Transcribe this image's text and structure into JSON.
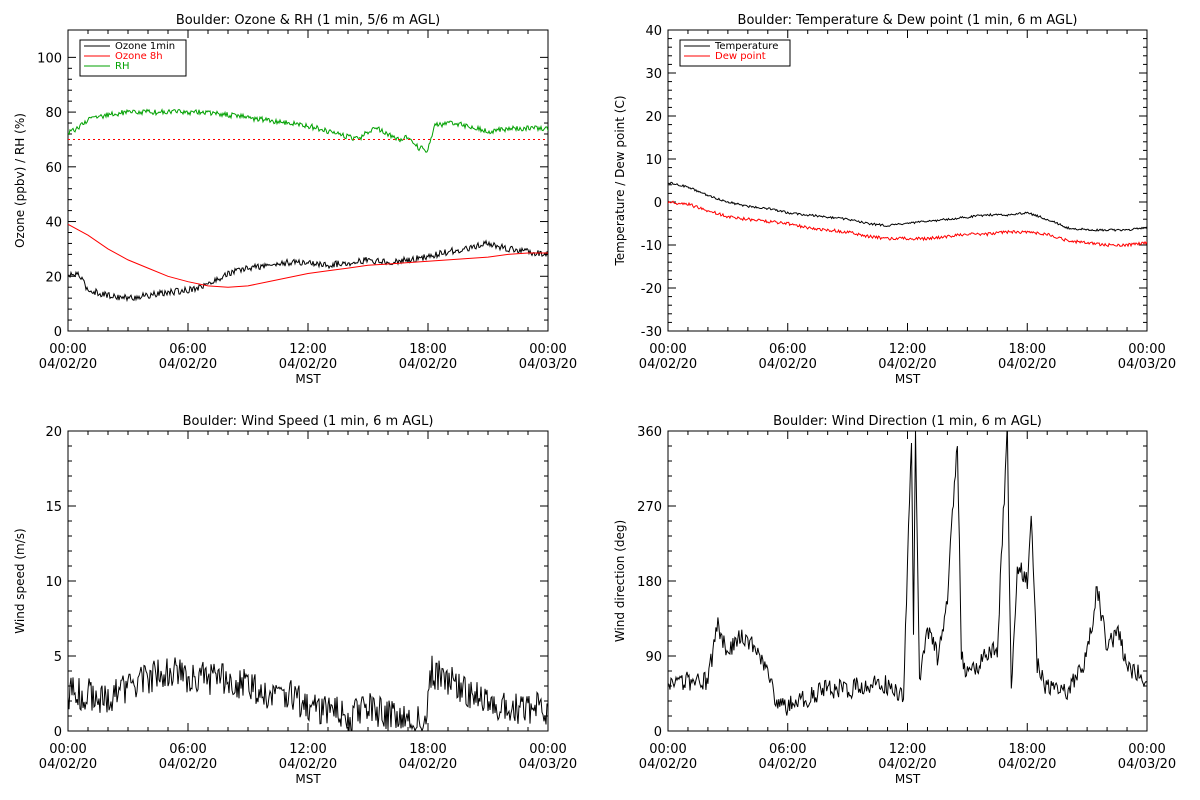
{
  "chart_data": [
    {
      "type": "line",
      "title": "Boulder: Ozone & RH (1 min, 5/6 m AGL)",
      "xlabel": "MST",
      "ylabel": "Ozone (ppbv) / RH (%)",
      "xlim": [
        0,
        24
      ],
      "ylim": [
        0,
        110
      ],
      "yticks": [
        0,
        20,
        40,
        60,
        80,
        100
      ],
      "xticks": [
        {
          "t": "00:00",
          "d": "04/02/20"
        },
        {
          "t": "06:00",
          "d": "04/02/20"
        },
        {
          "t": "12:00",
          "d": "04/02/20"
        },
        {
          "t": "18:00",
          "d": "04/02/20"
        },
        {
          "t": "00:00",
          "d": "04/03/20"
        }
      ],
      "legend": "top-left",
      "series": [
        {
          "name": "Ozone 1min",
          "color": "#000000",
          "style": "solid",
          "noise": 1.2,
          "x": [
            0,
            0.5,
            1,
            2,
            3,
            4,
            5,
            6,
            7,
            8,
            9,
            10,
            11,
            12,
            13,
            14,
            15,
            16,
            17,
            18,
            19,
            20,
            21,
            22,
            23,
            24
          ],
          "y": [
            20,
            21,
            15,
            13,
            12,
            13,
            14,
            15,
            17,
            21,
            23,
            24,
            25,
            25,
            24,
            25,
            26,
            25,
            26,
            27,
            29,
            30,
            32,
            30,
            29,
            28
          ]
        },
        {
          "name": "Ozone 8h",
          "color": "#ff0000",
          "style": "solid",
          "noise": 0,
          "x": [
            0,
            1,
            2,
            3,
            4,
            5,
            6,
            7,
            8,
            9,
            10,
            11,
            12,
            13,
            14,
            15,
            16,
            17,
            18,
            19,
            20,
            21,
            22,
            23,
            24
          ],
          "y": [
            39,
            35,
            30,
            26,
            23,
            20,
            18,
            16.5,
            16,
            16.5,
            18,
            19.5,
            21,
            22,
            23,
            24,
            24.5,
            25,
            25.5,
            26,
            26.5,
            27,
            28,
            28.5,
            28.5
          ]
        },
        {
          "name": "RH",
          "color": "#00a000",
          "style": "solid",
          "noise": 1.0,
          "x": [
            0,
            1,
            2,
            3,
            4,
            5,
            6,
            7,
            8,
            9,
            10,
            11,
            12,
            13,
            14,
            14.5,
            15,
            15.5,
            16,
            16.5,
            17,
            17.5,
            18,
            18.3,
            19,
            20,
            21,
            22,
            23,
            24
          ],
          "y": [
            72,
            77,
            79,
            80,
            80,
            80,
            80,
            80,
            79,
            78,
            77,
            76,
            75,
            73,
            71,
            70,
            73,
            74,
            72,
            70,
            71,
            67,
            66,
            75,
            76,
            75,
            73,
            74,
            74,
            74
          ]
        },
        {
          "name": "",
          "color": "#ff0000",
          "style": "dotted",
          "noise": 0,
          "x": [
            0,
            24
          ],
          "y": [
            70,
            70
          ]
        }
      ]
    },
    {
      "type": "line",
      "title": "Boulder: Temperature & Dew point (1 min, 6 m AGL)",
      "xlabel": "MST",
      "ylabel": "Temperature / Dew point (C)",
      "xlim": [
        0,
        24
      ],
      "ylim": [
        -30,
        40
      ],
      "yticks": [
        -30,
        -20,
        -10,
        0,
        10,
        20,
        30,
        40
      ],
      "xticks": [
        {
          "t": "00:00",
          "d": "04/02/20"
        },
        {
          "t": "06:00",
          "d": "04/02/20"
        },
        {
          "t": "12:00",
          "d": "04/02/20"
        },
        {
          "t": "18:00",
          "d": "04/02/20"
        },
        {
          "t": "00:00",
          "d": "04/03/20"
        }
      ],
      "legend": "top-left",
      "series": [
        {
          "name": "Temperature",
          "color": "#000000",
          "style": "solid",
          "noise": 0.25,
          "x": [
            0,
            1,
            2,
            3,
            4,
            5,
            6,
            7,
            8,
            9,
            10,
            11,
            12,
            13,
            14,
            15,
            16,
            17,
            18,
            19,
            20,
            21,
            22,
            23,
            24
          ],
          "y": [
            4.5,
            3.5,
            1.5,
            0,
            -1,
            -1.5,
            -2.5,
            -3,
            -3.5,
            -4,
            -5,
            -5.5,
            -5,
            -4.5,
            -4,
            -3.5,
            -3,
            -3,
            -2.5,
            -4,
            -6,
            -6.5,
            -6.5,
            -6.5,
            -6
          ]
        },
        {
          "name": "Dew point",
          "color": "#ff0000",
          "style": "solid",
          "noise": 0.35,
          "x": [
            0,
            1,
            2,
            3,
            4,
            5,
            6,
            7,
            8,
            9,
            10,
            11,
            12,
            13,
            14,
            15,
            16,
            17,
            18,
            19,
            20,
            21,
            22,
            23,
            24
          ],
          "y": [
            0,
            -0.5,
            -2,
            -3.5,
            -4,
            -4.5,
            -5,
            -6,
            -6.5,
            -7,
            -8,
            -8.5,
            -8.5,
            -8.5,
            -8,
            -7.5,
            -7.5,
            -7,
            -7,
            -7.5,
            -9,
            -9.5,
            -10,
            -10,
            -9.5
          ]
        }
      ]
    },
    {
      "type": "line",
      "title": "Boulder: Wind Speed (1 min, 6 m AGL)",
      "xlabel": "MST",
      "ylabel": "Wind speed (m/s)",
      "xlim": [
        0,
        24
      ],
      "ylim": [
        0,
        20
      ],
      "yticks": [
        0,
        5,
        10,
        15,
        20
      ],
      "xticks": [
        {
          "t": "00:00",
          "d": "04/02/20"
        },
        {
          "t": "06:00",
          "d": "04/02/20"
        },
        {
          "t": "12:00",
          "d": "04/02/20"
        },
        {
          "t": "18:00",
          "d": "04/02/20"
        },
        {
          "t": "00:00",
          "d": "04/03/20"
        }
      ],
      "series": [
        {
          "name": "",
          "color": "#000000",
          "style": "solid",
          "noise": 1.1,
          "x": [
            0,
            1,
            2,
            3,
            4,
            5,
            6,
            7,
            8,
            9,
            10,
            11,
            12,
            13,
            14,
            15,
            16,
            17,
            17.9,
            18.1,
            19,
            20,
            21,
            22,
            23,
            24
          ],
          "y": [
            2.5,
            2.5,
            2,
            3,
            3.5,
            4,
            3.5,
            3.5,
            3.5,
            3,
            2.5,
            2.5,
            1.5,
            1.5,
            1,
            1.5,
            1,
            0.7,
            0.6,
            4,
            3.5,
            2.5,
            2,
            1.5,
            1.5,
            1.5
          ]
        }
      ]
    },
    {
      "type": "line",
      "title": "Boulder: Wind Direction (1 min, 6 m AGL)",
      "xlabel": "MST",
      "ylabel": "Wind direction (deg)",
      "xlim": [
        0,
        24
      ],
      "ylim": [
        0,
        360
      ],
      "yticks": [
        0,
        90,
        180,
        270,
        360
      ],
      "xticks": [
        {
          "t": "00:00",
          "d": "04/02/20"
        },
        {
          "t": "06:00",
          "d": "04/02/20"
        },
        {
          "t": "12:00",
          "d": "04/02/20"
        },
        {
          "t": "18:00",
          "d": "04/02/20"
        },
        {
          "t": "00:00",
          "d": "04/03/20"
        }
      ],
      "series": [
        {
          "name": "",
          "color": "#000000",
          "style": "solid",
          "noise": 12,
          "x": [
            0,
            1,
            2,
            2.5,
            3,
            3.5,
            4,
            4.5,
            5,
            5.5,
            6,
            7,
            8,
            9,
            10,
            11,
            11.8,
            12,
            12.2,
            12.3,
            12.4,
            12.6,
            13,
            13.5,
            14,
            14.5,
            14.7,
            15,
            16,
            16.5,
            17,
            17.2,
            17.5,
            18,
            18.2,
            18.5,
            19,
            20,
            21,
            21.5,
            22,
            22.5,
            23,
            24
          ],
          "y": [
            50,
            60,
            60,
            130,
            90,
            115,
            110,
            100,
            70,
            30,
            30,
            40,
            50,
            50,
            55,
            55,
            45,
            200,
            350,
            120,
            350,
            60,
            120,
            90,
            160,
            350,
            90,
            70,
            90,
            100,
            360,
            40,
            200,
            180,
            270,
            80,
            50,
            50,
            90,
            170,
            100,
            120,
            80,
            60
          ]
        }
      ]
    }
  ]
}
